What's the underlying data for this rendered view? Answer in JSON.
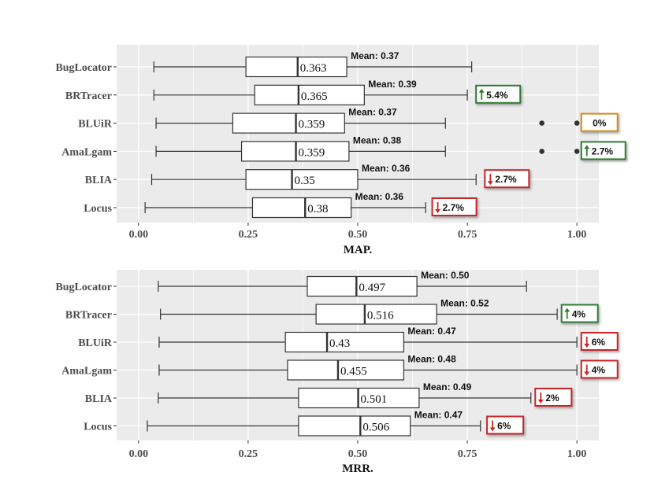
{
  "colors": {
    "panel": "#ebebeb",
    "grid_major": "#ffffff",
    "box_fill": "#ffffff",
    "stroke": "#333333",
    "outlier": "#333333",
    "up": "#2e7d32",
    "down": "#c62828",
    "neutral": "#d4891c"
  },
  "chart_data": [
    {
      "type": "boxplot",
      "title": "MAP.",
      "xlabel": "MAP.",
      "xlim": [
        -0.05,
        1.05
      ],
      "xticks": [
        "0.00",
        "0.25",
        "0.50",
        "0.75",
        "1.00"
      ],
      "xtick_values": [
        0,
        0.25,
        0.5,
        0.75,
        1.0
      ],
      "grid": true,
      "series": [
        {
          "name": "BugLocator",
          "whisker_low": 0.035,
          "q1": 0.245,
          "median": 0.363,
          "q3": 0.475,
          "whisker_high": 0.76,
          "median_label": "0.363",
          "mean_label": "Mean: 0.37",
          "outliers": [],
          "badge": null
        },
        {
          "name": "BRTracer",
          "whisker_low": 0.035,
          "q1": 0.265,
          "median": 0.365,
          "q3": 0.515,
          "whisker_high": 0.75,
          "median_label": "0.365",
          "mean_label": "Mean: 0.39",
          "outliers": [],
          "badge": {
            "text": "5.4%",
            "dir": "up",
            "at": 0.77
          }
        },
        {
          "name": "BLUiR",
          "whisker_low": 0.04,
          "q1": 0.215,
          "median": 0.359,
          "q3": 0.47,
          "whisker_high": 0.7,
          "median_label": "0.359",
          "mean_label": "Mean: 0.37",
          "outliers": [
            0.92,
            1.0
          ],
          "badge": {
            "text": "0%",
            "dir": "neutral",
            "at": 1.01
          }
        },
        {
          "name": "AmaLgam",
          "whisker_low": 0.04,
          "q1": 0.235,
          "median": 0.359,
          "q3": 0.48,
          "whisker_high": 0.7,
          "median_label": "0.359",
          "mean_label": "Mean: 0.38",
          "outliers": [
            0.92,
            1.0
          ],
          "badge": {
            "text": "2.7%",
            "dir": "up",
            "at": 1.01
          }
        },
        {
          "name": "BLIA",
          "whisker_low": 0.03,
          "q1": 0.245,
          "median": 0.35,
          "q3": 0.5,
          "whisker_high": 0.77,
          "median_label": "0.35",
          "mean_label": "Mean: 0.36",
          "outliers": [],
          "badge": {
            "text": "2.7%",
            "dir": "down",
            "at": 0.79
          }
        },
        {
          "name": "Locus",
          "whisker_low": 0.015,
          "q1": 0.26,
          "median": 0.38,
          "q3": 0.485,
          "whisker_high": 0.655,
          "median_label": "0.38",
          "mean_label": "Mean: 0.36",
          "outliers": [],
          "badge": {
            "text": "2.7%",
            "dir": "down",
            "at": 0.67
          }
        }
      ]
    },
    {
      "type": "boxplot",
      "title": "MRR.",
      "xlabel": "MRR.",
      "xlim": [
        -0.05,
        1.05
      ],
      "xticks": [
        "0.00",
        "0.25",
        "0.50",
        "0.75",
        "1.00"
      ],
      "xtick_values": [
        0,
        0.25,
        0.5,
        0.75,
        1.0
      ],
      "grid": true,
      "series": [
        {
          "name": "BugLocator",
          "whisker_low": 0.045,
          "q1": 0.385,
          "median": 0.497,
          "q3": 0.635,
          "whisker_high": 0.885,
          "median_label": "0.497",
          "mean_label": "Mean: 0.50",
          "outliers": [],
          "badge": null
        },
        {
          "name": "BRTracer",
          "whisker_low": 0.05,
          "q1": 0.405,
          "median": 0.516,
          "q3": 0.68,
          "whisker_high": 0.955,
          "median_label": "0.516",
          "mean_label": "Mean: 0.52",
          "outliers": [],
          "badge": {
            "text": "4%",
            "dir": "up",
            "at": 0.965
          }
        },
        {
          "name": "BLUiR",
          "whisker_low": 0.047,
          "q1": 0.335,
          "median": 0.43,
          "q3": 0.605,
          "whisker_high": 1.0,
          "median_label": "0.43",
          "mean_label": "Mean: 0.47",
          "outliers": [],
          "badge": {
            "text": "6%",
            "dir": "down",
            "at": 1.01
          }
        },
        {
          "name": "AmaLgam",
          "whisker_low": 0.047,
          "q1": 0.34,
          "median": 0.455,
          "q3": 0.605,
          "whisker_high": 1.0,
          "median_label": "0.455",
          "mean_label": "Mean: 0.48",
          "outliers": [],
          "badge": {
            "text": "4%",
            "dir": "down",
            "at": 1.01
          }
        },
        {
          "name": "BLIA",
          "whisker_low": 0.045,
          "q1": 0.365,
          "median": 0.501,
          "q3": 0.64,
          "whisker_high": 0.895,
          "median_label": "0.501",
          "mean_label": "Mean: 0.49",
          "outliers": [],
          "badge": {
            "text": "2%",
            "dir": "down",
            "at": 0.905
          }
        },
        {
          "name": "Locus",
          "whisker_low": 0.02,
          "q1": 0.365,
          "median": 0.506,
          "q3": 0.62,
          "whisker_high": 0.78,
          "median_label": "0.506",
          "mean_label": "Mean: 0.47",
          "outliers": [],
          "badge": {
            "text": "6%",
            "dir": "down",
            "at": 0.795
          }
        }
      ]
    }
  ]
}
